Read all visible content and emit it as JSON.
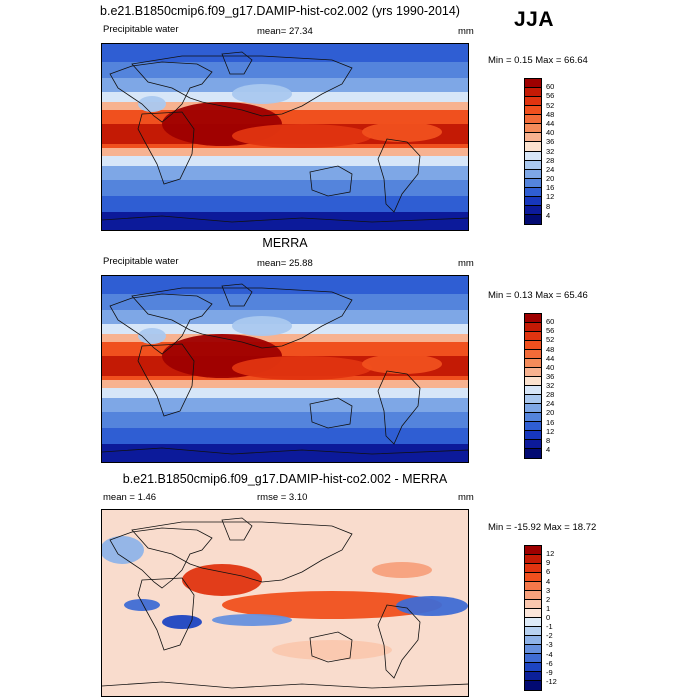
{
  "main_title": "b.e21.B1850cmip6.f09_g17.DAMIP-hist-co2.002 (yrs 1990-2014)",
  "season": "JJA",
  "panels": [
    {
      "heading": "",
      "left_label": "Precipitable water",
      "center_label": "mean=  27.34",
      "rmse_label": "",
      "units": "mm",
      "minmax": "Min =   0.15 Max =  66.64",
      "colorbar_labels": [
        "60",
        "56",
        "52",
        "48",
        "44",
        "40",
        "36",
        "32",
        "28",
        "24",
        "20",
        "16",
        "12",
        "8",
        "4"
      ],
      "colorbar_colors": [
        "#9e0000",
        "#c41a05",
        "#e03410",
        "#f0501e",
        "#f26b38",
        "#f48b5a",
        "#f7b290",
        "#fbe2cf",
        "#d7e6f8",
        "#aac8ef",
        "#7ea7e6",
        "#5484dc",
        "#2f5ed3",
        "#1737bd",
        "#0c1a9a",
        "#020a72"
      ],
      "field": "model"
    },
    {
      "heading": "MERRA",
      "left_label": "Precipitable water",
      "center_label": "mean=  25.88",
      "rmse_label": "",
      "units": "mm",
      "minmax": "Min =   0.13 Max =  65.46",
      "colorbar_labels": [
        "60",
        "56",
        "52",
        "48",
        "44",
        "40",
        "36",
        "32",
        "28",
        "24",
        "20",
        "16",
        "12",
        "8",
        "4"
      ],
      "colorbar_colors": [
        "#9e0000",
        "#c41a05",
        "#e03410",
        "#f0501e",
        "#f26b38",
        "#f48b5a",
        "#f7b290",
        "#fbe2cf",
        "#d7e6f8",
        "#aac8ef",
        "#7ea7e6",
        "#5484dc",
        "#2f5ed3",
        "#1737bd",
        "#0c1a9a",
        "#020a72"
      ],
      "field": "obs"
    },
    {
      "heading": "b.e21.B1850cmip6.f09_g17.DAMIP-hist-co2.002 - MERRA",
      "left_label": "mean =   1.46",
      "center_label": "rmse =   3.10",
      "rmse_label": "",
      "units": "mm",
      "minmax": "Min = -15.92 Max =  18.72",
      "colorbar_labels": [
        "12",
        "9",
        "6",
        "4",
        "3",
        "2",
        "1",
        "0",
        "-1",
        "-2",
        "-3",
        "-4",
        "-6",
        "-9",
        "-12"
      ],
      "colorbar_colors": [
        "#9e0000",
        "#c41a05",
        "#e03410",
        "#f0501e",
        "#f4784a",
        "#f7a07c",
        "#fac7ae",
        "#fce6da",
        "#deebf8",
        "#b8d2f1",
        "#8fb3e8",
        "#6690de",
        "#3f6cd4",
        "#1d45c2",
        "#0b2099",
        "#020a72"
      ],
      "field": "diff"
    }
  ]
}
